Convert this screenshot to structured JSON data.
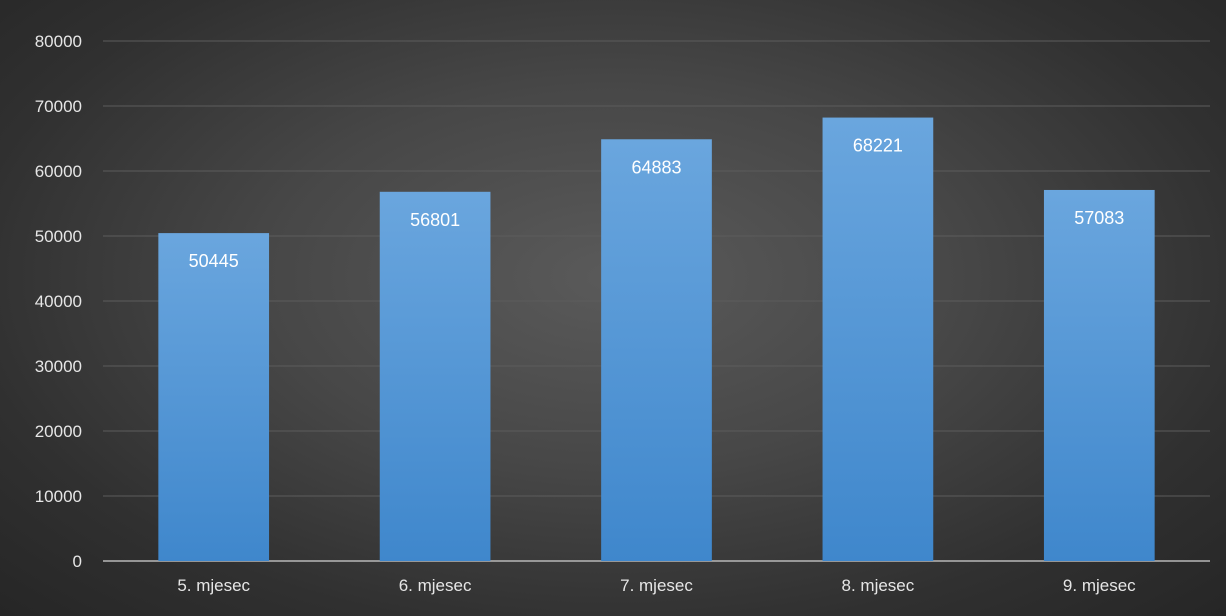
{
  "chart_data": {
    "type": "bar",
    "title": "",
    "xlabel": "",
    "ylabel": "",
    "categories": [
      "5. mjesec",
      "6. mjesec",
      "7. mjesec",
      "8. mjesec",
      "9. mjesec"
    ],
    "values": [
      50445,
      56801,
      64883,
      68221,
      57083
    ],
    "data_labels": [
      "50445",
      "56801",
      "64883",
      "68221",
      "57083"
    ],
    "ylim": [
      0,
      80000
    ],
    "yticks": [
      0,
      10000,
      20000,
      30000,
      40000,
      50000,
      60000,
      70000,
      80000
    ],
    "ytick_labels": [
      "0",
      "10000",
      "20000",
      "30000",
      "40000",
      "50000",
      "60000",
      "70000",
      "80000"
    ],
    "grid": true,
    "legend": "none",
    "colors": {
      "bar_top": "#6aa6de",
      "bar_bottom": "#3f87cc",
      "background": "#3c3c3c",
      "text": "#e6e6e6"
    }
  }
}
